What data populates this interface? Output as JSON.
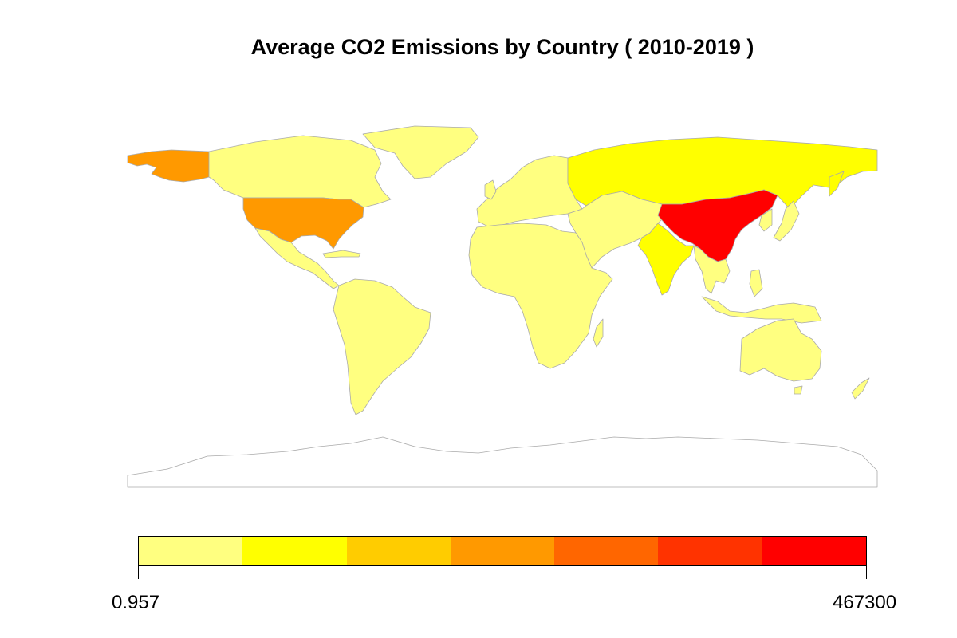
{
  "title": "Average CO2 Emissions by Country ( 2010-2019 )",
  "legend": {
    "min_label": "0.957",
    "max_label": "467300",
    "bins": [
      {
        "color": "#ffff80"
      },
      {
        "color": "#ffff00"
      },
      {
        "color": "#ffcc00"
      },
      {
        "color": "#ff9900"
      },
      {
        "color": "#ff6600"
      },
      {
        "color": "#ff3300"
      },
      {
        "color": "#ff0000"
      }
    ]
  },
  "map": {
    "projection": "equirectangular world",
    "border_color": "#aaaaaa",
    "missing_color": "#ffffff",
    "regions": [
      {
        "name": "United States",
        "color": "#ff9900"
      },
      {
        "name": "Alaska",
        "color": "#ff9900"
      },
      {
        "name": "Canada",
        "color": "#ffff80"
      },
      {
        "name": "Greenland",
        "color": "#ffff80"
      },
      {
        "name": "Mexico and Central America",
        "color": "#ffff80"
      },
      {
        "name": "South America",
        "color": "#ffff80"
      },
      {
        "name": "Europe",
        "color": "#ffff80"
      },
      {
        "name": "Russia",
        "color": "#ffff00"
      },
      {
        "name": "Africa",
        "color": "#ffff80"
      },
      {
        "name": "Middle East and Central Asia",
        "color": "#ffff80"
      },
      {
        "name": "India",
        "color": "#ffff00"
      },
      {
        "name": "China",
        "color": "#ff0000"
      },
      {
        "name": "Southeast Asia",
        "color": "#ffff80"
      },
      {
        "name": "Japan",
        "color": "#ffff80"
      },
      {
        "name": "Indonesia",
        "color": "#ffff80"
      },
      {
        "name": "Australia",
        "color": "#ffff80"
      },
      {
        "name": "New Zealand",
        "color": "#ffff80"
      },
      {
        "name": "Antarctica",
        "color": "#ffffff"
      }
    ]
  }
}
